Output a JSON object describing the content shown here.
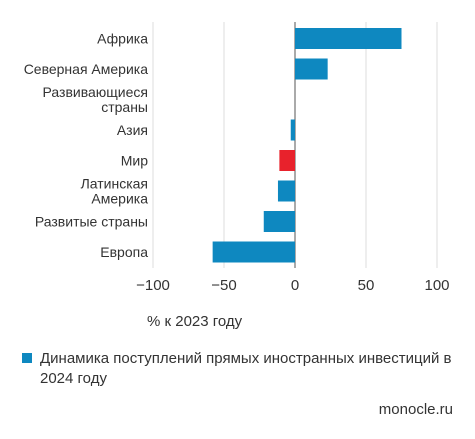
{
  "chart_data": {
    "type": "bar",
    "orientation": "horizontal",
    "categories": [
      [
        "Африка"
      ],
      [
        "Северная Америка"
      ],
      [
        "Развивающиеся",
        "страны"
      ],
      [
        "Азия"
      ],
      [
        "Мир"
      ],
      [
        "Латинская",
        "Америка"
      ],
      [
        "Развитые страны"
      ],
      [
        "Европа"
      ]
    ],
    "values": [
      75,
      23,
      0,
      -3,
      -11,
      -12,
      -22,
      -58
    ],
    "highlight_index": 4,
    "xlim": [
      -100,
      100
    ],
    "xticks": [
      -100,
      -50,
      0,
      50,
      100
    ],
    "xlabel": "% к 2023 году",
    "grid": "vertical",
    "colors": {
      "bar": "#0e88c0",
      "highlight": "#e8222c",
      "grid": "#dcdcdc",
      "axis": "#555555"
    },
    "legend": {
      "position": "bottom-left",
      "entries": [
        {
          "name": "Динамика поступлений прямых иностранных инвестиций в 2024 году",
          "color": "#0e88c0"
        }
      ]
    }
  },
  "source": "monocle.ru"
}
